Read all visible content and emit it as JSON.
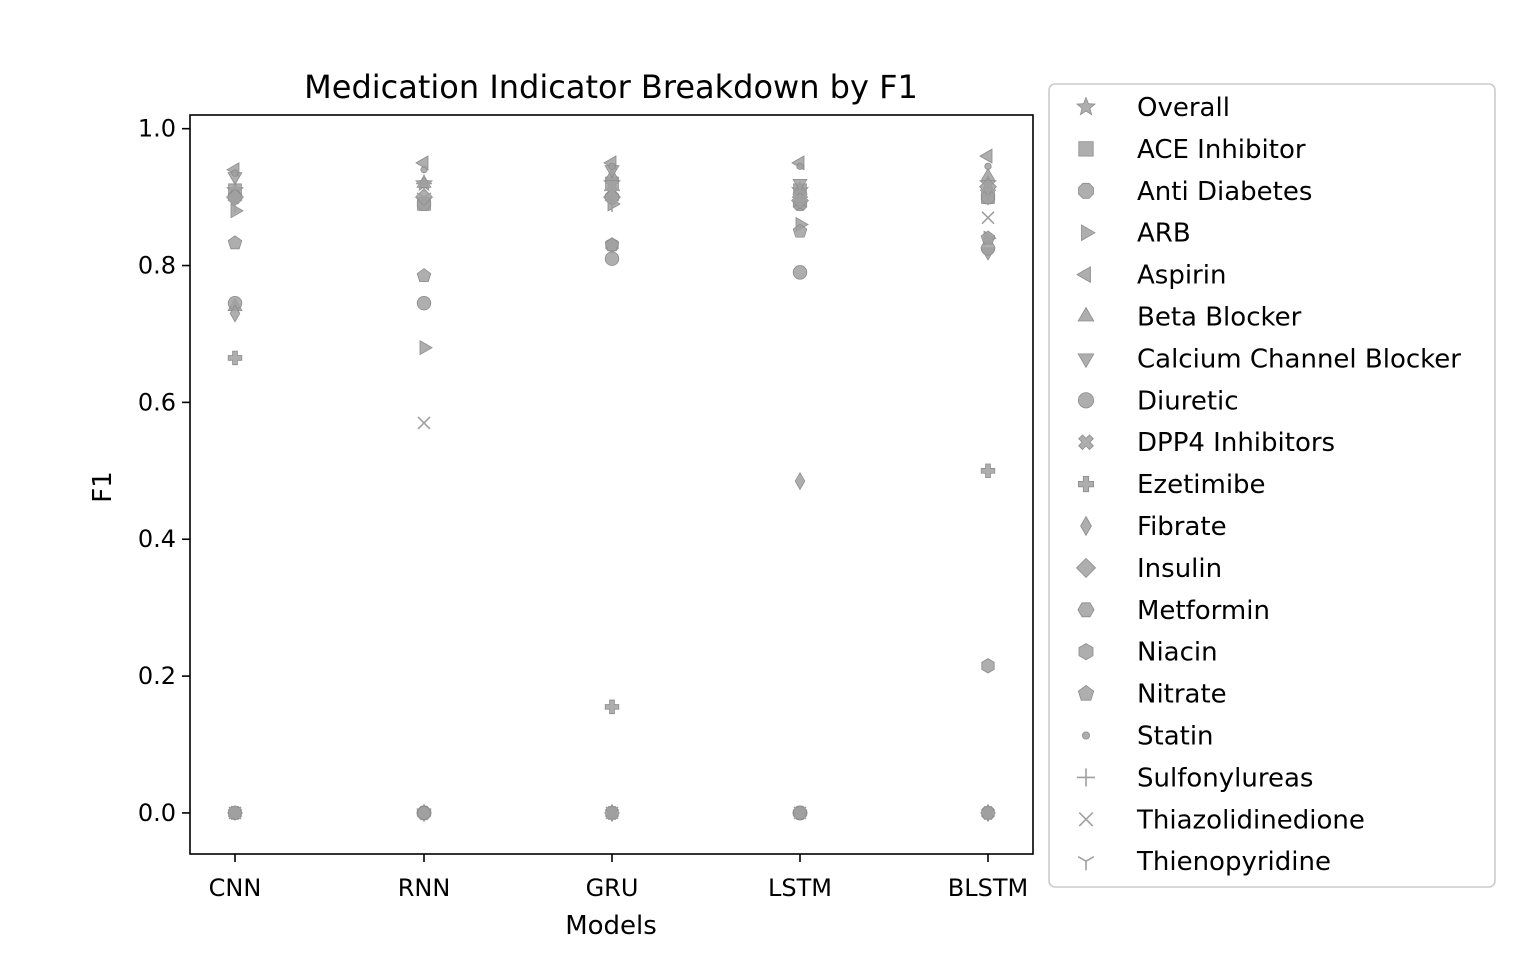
{
  "chart_data": {
    "type": "scatter",
    "title": "Medication Indicator Breakdown by F1",
    "xlabel": "Models",
    "ylabel": "F1",
    "categories": [
      "CNN",
      "RNN",
      "GRU",
      "LSTM",
      "BLSTM"
    ],
    "ylim": [
      -0.06,
      1.02
    ],
    "yticks": [
      0.0,
      0.2,
      0.4,
      0.6,
      0.8,
      1.0
    ],
    "ytick_labels": [
      "0.0",
      "0.2",
      "0.4",
      "0.6",
      "0.8",
      "1.0"
    ],
    "grid": false,
    "legend_position": "outside-right",
    "marker_color": "#a0a0a0",
    "series": [
      {
        "name": "Overall",
        "marker": "star",
        "values": [
          0.91,
          0.92,
          0.92,
          0.91,
          0.92
        ]
      },
      {
        "name": "ACE Inhibitor",
        "marker": "square",
        "values": [
          0.91,
          0.89,
          0.92,
          0.91,
          0.9
        ]
      },
      {
        "name": "Anti Diabetes",
        "marker": "octagon",
        "values": [
          0.9,
          0.89,
          0.9,
          0.89,
          0.9
        ]
      },
      {
        "name": "ARB",
        "marker": "triangle-right",
        "values": [
          0.88,
          0.68,
          0.89,
          0.86,
          0.84
        ]
      },
      {
        "name": "Aspirin",
        "marker": "triangle-left",
        "values": [
          0.94,
          0.95,
          0.95,
          0.95,
          0.96
        ]
      },
      {
        "name": "Beta Blocker",
        "marker": "triangle-up",
        "values": [
          0.74,
          0.92,
          0.93,
          0.91,
          0.93
        ]
      },
      {
        "name": "Calcium Channel Blocker",
        "marker": "triangle-down",
        "values": [
          0.93,
          0.0,
          0.94,
          0.92,
          0.82
        ]
      },
      {
        "name": "Diuretic",
        "marker": "circle",
        "values": [
          0.745,
          0.745,
          0.81,
          0.79,
          0.825
        ]
      },
      {
        "name": "DPP4 Inhibitors",
        "marker": "x-filled",
        "values": [
          0.0,
          0.0,
          0.0,
          0.89,
          0.0
        ]
      },
      {
        "name": "Ezetimibe",
        "marker": "plus-filled",
        "values": [
          0.665,
          0.0,
          0.155,
          0.0,
          0.5
        ]
      },
      {
        "name": "Fibrate",
        "marker": "thin-diamond",
        "values": [
          0.73,
          0.0,
          0.0,
          0.485,
          0.0
        ]
      },
      {
        "name": "Insulin",
        "marker": "diamond",
        "values": [
          0.9,
          0.9,
          0.9,
          0.895,
          0.915
        ]
      },
      {
        "name": "Metformin",
        "marker": "hexagon-flat",
        "values": [
          0.0,
          0.0,
          0.0,
          0.0,
          0.0
        ]
      },
      {
        "name": "Niacin",
        "marker": "hexagon",
        "values": [
          0.0,
          0.0,
          0.83,
          0.0,
          0.215
        ]
      },
      {
        "name": "Nitrate",
        "marker": "pentagon",
        "values": [
          0.833,
          0.785,
          0.83,
          0.85,
          0.84
        ]
      },
      {
        "name": "Statin",
        "marker": "point",
        "values": [
          0.935,
          0.94,
          0.945,
          0.945,
          0.945
        ]
      },
      {
        "name": "Sulfonylureas",
        "marker": "plus",
        "values": [
          0.9,
          0.92,
          0.91,
          0.9,
          0.91
        ]
      },
      {
        "name": "Thiazolidinedione",
        "marker": "x",
        "values": [
          0.0,
          0.57,
          0.0,
          0.0,
          0.87
        ]
      },
      {
        "name": "Thienopyridine",
        "marker": "tri-down",
        "values": [
          0.89,
          0.9,
          0.89,
          0.9,
          0.9
        ]
      }
    ]
  }
}
